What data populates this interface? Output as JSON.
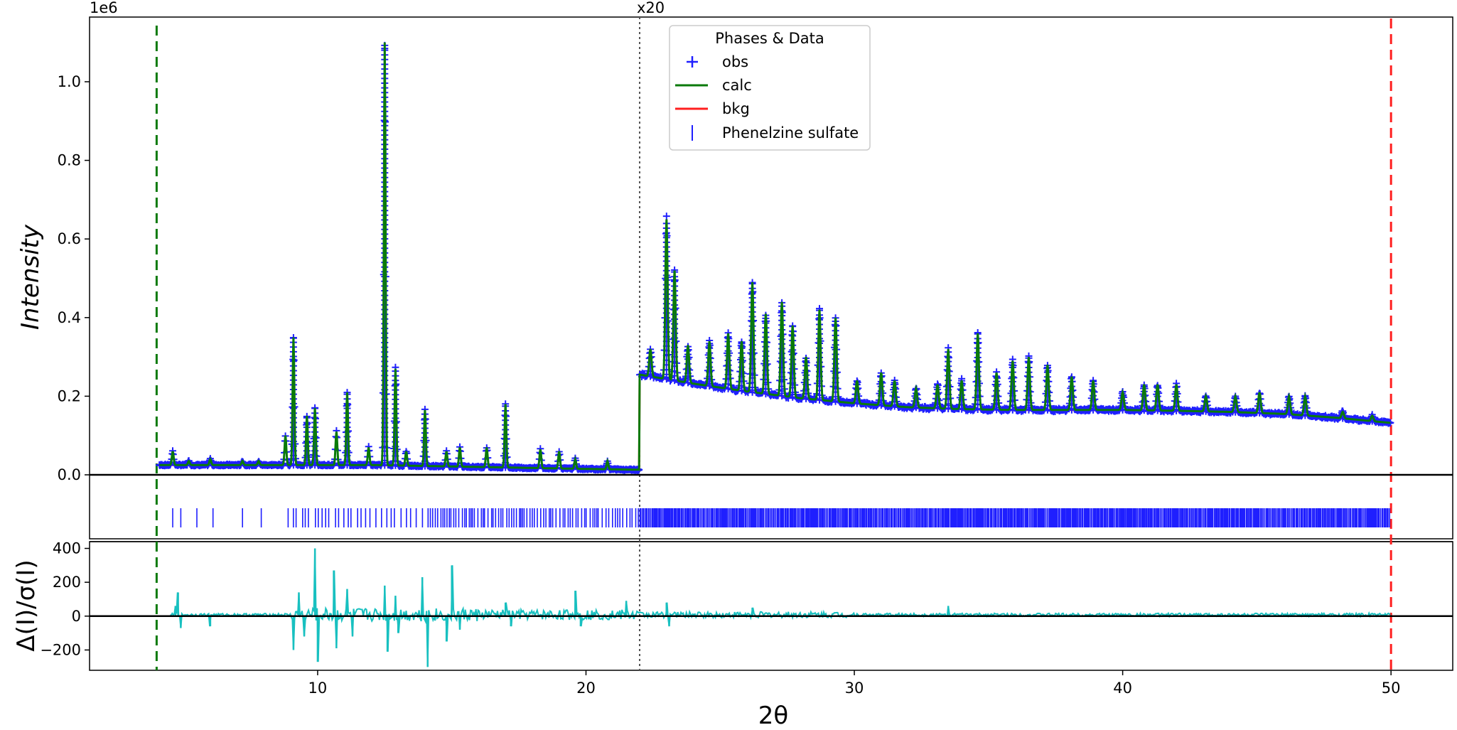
{
  "chart_data": {
    "type": "line",
    "top_panel": {
      "ylabel": "Intensity",
      "y_offset_label": "1e6",
      "ylim": [
        -0.005,
        1.16
      ],
      "yticks": [
        "0.0",
        "0.2",
        "0.4",
        "0.6",
        "0.8",
        "1.0"
      ],
      "ytick_values": [
        0,
        0.2,
        0.4,
        0.6,
        0.8,
        1.0
      ],
      "scale_marker": "x20",
      "scale_marker_x": 22,
      "left_limit_x": 4,
      "right_limit_x": 50
    },
    "bottom_panel": {
      "ylabel": "Δ(I)/σ(I)",
      "ylim": [
        -320,
        440
      ],
      "yticks": [
        "400",
        "200",
        "0",
        "−200"
      ],
      "ytick_values": [
        400,
        200,
        0,
        -200
      ]
    },
    "x": {
      "label": "2θ",
      "xlim": [
        1.5,
        52.3
      ],
      "ticks": [
        "10",
        "20",
        "30",
        "40",
        "50"
      ],
      "tick_values": [
        10,
        20,
        30,
        40,
        50
      ]
    },
    "legend": {
      "title": "Phases & Data",
      "placement": "top-center",
      "entries": [
        "obs",
        "calc",
        "bkg",
        "Phenelzine sulfate"
      ]
    },
    "colors": {
      "obs": "#1f1fff",
      "calc": "#0a7a0a",
      "bkg": "#ff1f1f",
      "diff": "#18c0c0",
      "left_limit": "#0a7a0a",
      "right_limit": "#ff1f1f"
    },
    "peaks": [
      {
        "x": 4.6,
        "y": 0.06
      },
      {
        "x": 5.2,
        "y": 0.035
      },
      {
        "x": 6.0,
        "y": 0.04
      },
      {
        "x": 7.2,
        "y": 0.035
      },
      {
        "x": 7.8,
        "y": 0.035
      },
      {
        "x": 8.8,
        "y": 0.1
      },
      {
        "x": 9.1,
        "y": 0.35
      },
      {
        "x": 9.6,
        "y": 0.15
      },
      {
        "x": 9.9,
        "y": 0.17
      },
      {
        "x": 10.7,
        "y": 0.11
      },
      {
        "x": 11.1,
        "y": 0.21
      },
      {
        "x": 11.9,
        "y": 0.07
      },
      {
        "x": 12.5,
        "y": 1.1
      },
      {
        "x": 12.9,
        "y": 0.27
      },
      {
        "x": 13.3,
        "y": 0.06
      },
      {
        "x": 14.0,
        "y": 0.165
      },
      {
        "x": 14.8,
        "y": 0.06
      },
      {
        "x": 15.3,
        "y": 0.07
      },
      {
        "x": 16.3,
        "y": 0.07
      },
      {
        "x": 17.0,
        "y": 0.18
      },
      {
        "x": 18.3,
        "y": 0.065
      },
      {
        "x": 19.0,
        "y": 0.06
      },
      {
        "x": 19.6,
        "y": 0.04
      },
      {
        "x": 20.8,
        "y": 0.035
      },
      {
        "x": 22.4,
        "y": 0.32
      },
      {
        "x": 23.0,
        "y": 0.65
      },
      {
        "x": 23.3,
        "y": 0.52
      },
      {
        "x": 23.8,
        "y": 0.33
      },
      {
        "x": 24.6,
        "y": 0.34
      },
      {
        "x": 25.3,
        "y": 0.36
      },
      {
        "x": 25.8,
        "y": 0.34
      },
      {
        "x": 26.2,
        "y": 0.49
      },
      {
        "x": 26.7,
        "y": 0.41
      },
      {
        "x": 27.3,
        "y": 0.44
      },
      {
        "x": 27.7,
        "y": 0.38
      },
      {
        "x": 28.2,
        "y": 0.3
      },
      {
        "x": 28.7,
        "y": 0.42
      },
      {
        "x": 29.3,
        "y": 0.4
      },
      {
        "x": 30.1,
        "y": 0.24
      },
      {
        "x": 31.0,
        "y": 0.26
      },
      {
        "x": 31.5,
        "y": 0.24
      },
      {
        "x": 32.3,
        "y": 0.22
      },
      {
        "x": 33.1,
        "y": 0.23
      },
      {
        "x": 33.5,
        "y": 0.32
      },
      {
        "x": 34.0,
        "y": 0.24
      },
      {
        "x": 34.6,
        "y": 0.36
      },
      {
        "x": 35.3,
        "y": 0.26
      },
      {
        "x": 35.9,
        "y": 0.29
      },
      {
        "x": 36.5,
        "y": 0.3
      },
      {
        "x": 37.2,
        "y": 0.28
      },
      {
        "x": 38.1,
        "y": 0.25
      },
      {
        "x": 38.9,
        "y": 0.24
      },
      {
        "x": 40.0,
        "y": 0.21
      },
      {
        "x": 40.8,
        "y": 0.23
      },
      {
        "x": 41.3,
        "y": 0.23
      },
      {
        "x": 42.0,
        "y": 0.23
      },
      {
        "x": 43.1,
        "y": 0.2
      },
      {
        "x": 44.2,
        "y": 0.2
      },
      {
        "x": 45.1,
        "y": 0.21
      },
      {
        "x": 46.2,
        "y": 0.2
      },
      {
        "x": 46.8,
        "y": 0.2
      },
      {
        "x": 48.2,
        "y": 0.16
      },
      {
        "x": 49.3,
        "y": 0.15
      }
    ],
    "background": [
      {
        "x": 4.0,
        "y": 0.025
      },
      {
        "x": 8.0,
        "y": 0.025
      },
      {
        "x": 12.0,
        "y": 0.025
      },
      {
        "x": 16.0,
        "y": 0.02
      },
      {
        "x": 20.0,
        "y": 0.015
      },
      {
        "x": 21.98,
        "y": 0.013
      },
      {
        "x": 22.0,
        "y": 0.255
      },
      {
        "x": 24.0,
        "y": 0.232
      },
      {
        "x": 26.0,
        "y": 0.212
      },
      {
        "x": 28.0,
        "y": 0.195
      },
      {
        "x": 30.0,
        "y": 0.182
      },
      {
        "x": 32.0,
        "y": 0.172
      },
      {
        "x": 34.0,
        "y": 0.167
      },
      {
        "x": 36.0,
        "y": 0.165
      },
      {
        "x": 38.0,
        "y": 0.165
      },
      {
        "x": 40.0,
        "y": 0.165
      },
      {
        "x": 42.0,
        "y": 0.163
      },
      {
        "x": 44.0,
        "y": 0.16
      },
      {
        "x": 46.0,
        "y": 0.155
      },
      {
        "x": 48.0,
        "y": 0.145
      },
      {
        "x": 50.0,
        "y": 0.132
      }
    ],
    "difference_spikes": [
      {
        "x": 4.7,
        "y": 60
      },
      {
        "x": 4.8,
        "y": 140
      },
      {
        "x": 4.9,
        "y": -70
      },
      {
        "x": 6.0,
        "y": -60
      },
      {
        "x": 9.1,
        "y": -200
      },
      {
        "x": 9.3,
        "y": 140
      },
      {
        "x": 9.5,
        "y": -120
      },
      {
        "x": 9.9,
        "y": 400
      },
      {
        "x": 10.0,
        "y": -270
      },
      {
        "x": 10.6,
        "y": 270
      },
      {
        "x": 10.7,
        "y": -190
      },
      {
        "x": 11.1,
        "y": 160
      },
      {
        "x": 11.3,
        "y": -120
      },
      {
        "x": 12.5,
        "y": 180
      },
      {
        "x": 12.6,
        "y": -210
      },
      {
        "x": 12.9,
        "y": 120
      },
      {
        "x": 13.0,
        "y": -100
      },
      {
        "x": 13.9,
        "y": 230
      },
      {
        "x": 14.1,
        "y": -300
      },
      {
        "x": 14.8,
        "y": -150
      },
      {
        "x": 15.0,
        "y": 300
      },
      {
        "x": 15.3,
        "y": -80
      },
      {
        "x": 17.0,
        "y": 80
      },
      {
        "x": 17.2,
        "y": -60
      },
      {
        "x": 19.6,
        "y": 150
      },
      {
        "x": 19.8,
        "y": -60
      },
      {
        "x": 21.5,
        "y": 90
      },
      {
        "x": 23.0,
        "y": 80
      },
      {
        "x": 23.1,
        "y": -60
      },
      {
        "x": 26.2,
        "y": 50
      },
      {
        "x": 33.5,
        "y": 60
      }
    ],
    "tick_mark_start_x": 4.6,
    "dense_tick_start_x": 8.9
  }
}
